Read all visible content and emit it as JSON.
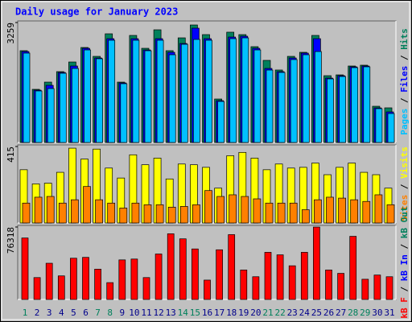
{
  "chart_data": [
    {
      "type": "bar",
      "title": "Daily usage for January 2023",
      "series": [
        {
          "name": "Hits",
          "color": "#00805c",
          "values": [
            2494,
            1444,
            1640,
            1925,
            2187,
            2581,
            2340,
            2953,
            1640,
            2909,
            2559,
            3062,
            2494,
            2843,
            3193,
            2931,
            1181,
            2997,
            2931,
            2603,
            2231,
            1969,
            2340,
            2450,
            2909,
            1815,
            1837,
            2078,
            2100,
            984,
            941
          ]
        },
        {
          "name": "Files",
          "color": "#0000ff",
          "values": [
            2471,
            1422,
            1553,
            1903,
            2078,
            2559,
            2296,
            2821,
            1619,
            2821,
            2515,
            2821,
            2450,
            2690,
            3106,
            2821,
            1137,
            2865,
            2887,
            2559,
            2012,
            1925,
            2296,
            2428,
            2821,
            1750,
            1815,
            2056,
            2078,
            940,
            831
          ]
        },
        {
          "name": "Pages",
          "color": "#00c0ff",
          "values": [
            2428,
            1400,
            1465,
            1881,
            2012,
            2515,
            2275,
            2778,
            1597,
            2778,
            2493,
            2778,
            2384,
            2668,
            2800,
            2778,
            1115,
            2821,
            2843,
            2515,
            1968,
            1903,
            2253,
            2384,
            2471,
            1728,
            1793,
            2034,
            2056,
            919,
            787
          ]
        }
      ],
      "ylim": [
        0,
        3259
      ],
      "yticks": [
        3259
      ],
      "legend_separator": " / "
    },
    {
      "type": "bar",
      "series": [
        {
          "name": "Visits",
          "color": "#ffff00",
          "values": [
            289,
            212,
            216,
            275,
            406,
            347,
            401,
            298,
            244,
            370,
            316,
            352,
            239,
            320,
            316,
            302,
            189,
            365,
            383,
            352,
            289,
            320,
            298,
            302,
            325,
            262,
            302,
            325,
            275,
            262,
            189
          ]
        },
        {
          "name": "Sites",
          "color": "#ff8000",
          "values": [
            108,
            140,
            144,
            108,
            126,
            198,
            126,
            108,
            81,
            108,
            99,
            99,
            86,
            90,
            99,
            176,
            144,
            153,
            144,
            131,
            108,
            108,
            108,
            72,
            126,
            140,
            135,
            126,
            117,
            153,
            99
          ]
        }
      ],
      "ylim": [
        0,
        415
      ],
      "yticks": [
        415
      ],
      "legend_separator": " / "
    },
    {
      "type": "bar",
      "categories": [
        "1",
        "2",
        "3",
        "4",
        "5",
        "6",
        "7",
        "8",
        "9",
        "10",
        "11",
        "12",
        "13",
        "14",
        "15",
        "16",
        "17",
        "18",
        "19",
        "20",
        "21",
        "22",
        "23",
        "24",
        "25",
        "26",
        "27",
        "28",
        "29",
        "30",
        "31"
      ],
      "category_colors": [
        "#00805c",
        "#00008b",
        "#00008b",
        "#00008b",
        "#00008b",
        "#00008b",
        "#00805c",
        "#00805c",
        "#00008b",
        "#00008b",
        "#00008b",
        "#00008b",
        "#00008b",
        "#00805c",
        "#00805c",
        "#00008b",
        "#00008b",
        "#00008b",
        "#00008b",
        "#00008b",
        "#00805c",
        "#00805c",
        "#00008b",
        "#00008b",
        "#00008b",
        "#00008b",
        "#00008b",
        "#00805c",
        "#00805c",
        "#00008b",
        "#00008b"
      ],
      "series": [
        {
          "name": "kB F",
          "color": "#ff0000",
          "values": [
            64751,
            23062,
            38141,
            24836,
            43463,
            44350,
            31932,
            17740,
            41689,
            42576,
            23062,
            47898,
            69186,
            63864,
            53220,
            20401,
            52333,
            68299,
            31045,
            23949,
            49672,
            47011,
            35480,
            49672,
            76282,
            31045,
            27497,
            66525,
            21288,
            25723,
            23949
          ]
        }
      ],
      "legend_extra": [
        {
          "name": "kB In",
          "color": "#0000ff"
        },
        {
          "name": "kB Out",
          "color": "#00805c"
        }
      ],
      "ylim": [
        0,
        76318
      ],
      "yticks": [
        76318
      ],
      "legend_separator": " / "
    }
  ]
}
